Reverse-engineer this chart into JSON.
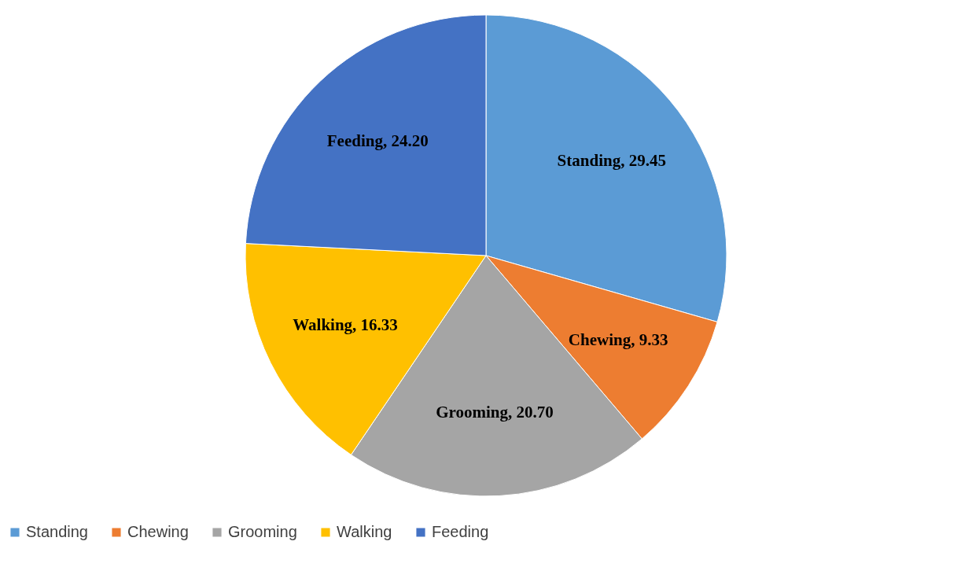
{
  "chart_data": {
    "type": "pie",
    "categories": [
      "Standing",
      "Chewing",
      "Grooming",
      "Walking",
      "Feeding"
    ],
    "values": [
      29.45,
      9.33,
      20.7,
      16.33,
      24.2
    ],
    "value_labels": [
      "Standing, 29.45",
      "Chewing, 9.33",
      "Grooming, 20.70",
      "Walking, 16.33",
      "Feeding, 24.20"
    ],
    "colors": [
      "#5b9bd5",
      "#ed7d31",
      "#a5a5a5",
      "#ffc000",
      "#4472c4"
    ],
    "legend": "bottom"
  }
}
